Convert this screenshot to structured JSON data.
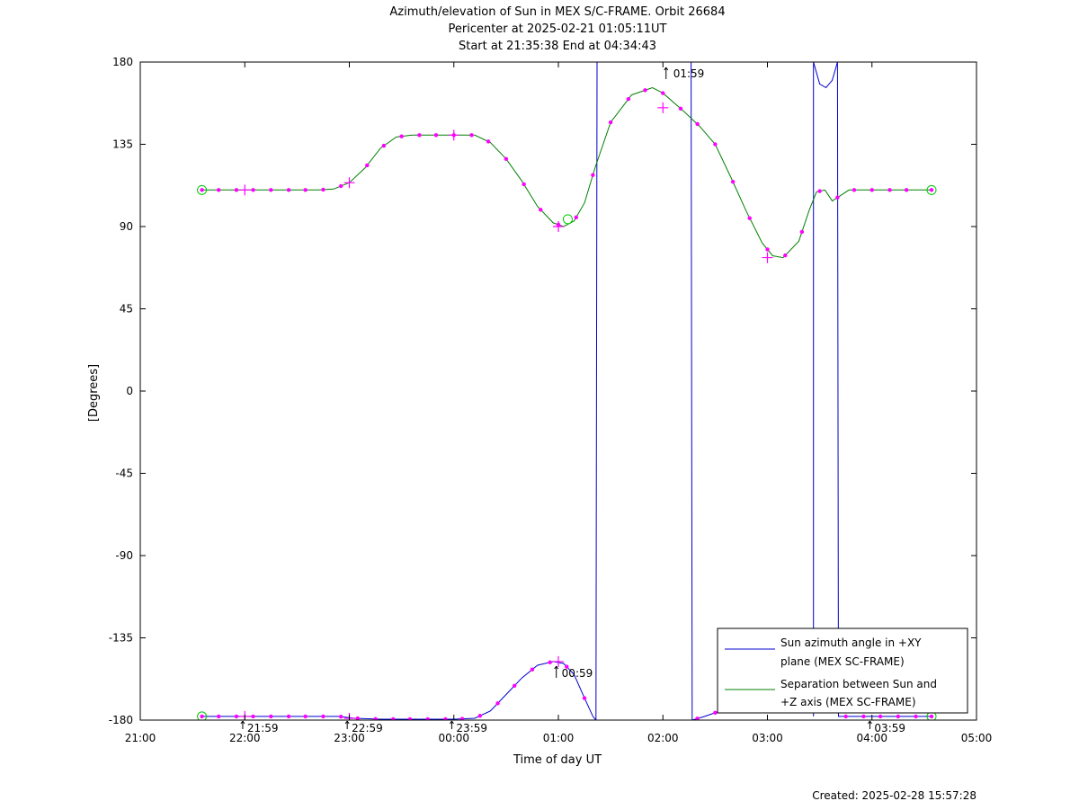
{
  "footer": {
    "created": "Created: 2025-02-28 15:57:28"
  },
  "chart_data": {
    "type": "line",
    "title_lines": [
      "Azimuth/elevation of Sun in MEX S/C-FRAME.  Orbit 26684",
      "Pericenter at 2025-02-21 01:05:11UT",
      "Start at 21:35:38 End at 04:34:43"
    ],
    "xlabel": "Time of day UT",
    "ylabel": "[Degrees]",
    "x_unit": "hours UT (21.0 = 21:00, 29.0 = 05:00 next day)",
    "xlim": [
      21.0,
      29.0
    ],
    "ylim": [
      -180,
      180
    ],
    "x_ticks": [
      {
        "v": 21,
        "label": "21:00"
      },
      {
        "v": 22,
        "label": "22:00"
      },
      {
        "v": 23,
        "label": "23:00"
      },
      {
        "v": 24,
        "label": "00:00"
      },
      {
        "v": 25,
        "label": "01:00"
      },
      {
        "v": 26,
        "label": "02:00"
      },
      {
        "v": 27,
        "label": "03:00"
      },
      {
        "v": 28,
        "label": "04:00"
      },
      {
        "v": 29,
        "label": "05:00"
      }
    ],
    "y_ticks": [
      {
        "v": 180,
        "label": "180"
      },
      {
        "v": 135,
        "label": "135"
      },
      {
        "v": 90,
        "label": "90"
      },
      {
        "v": 45,
        "label": "45"
      },
      {
        "v": 0,
        "label": "0"
      },
      {
        "v": -45,
        "label": "-45"
      },
      {
        "v": -90,
        "label": "-90"
      },
      {
        "v": -135,
        "label": "-135"
      },
      {
        "v": -180,
        "label": "-180"
      }
    ],
    "legend": {
      "position": "bottom-right",
      "entries": [
        {
          "lines": [
            "Sun azimuth angle in +XY",
            "plane (MEX SC-FRAME)"
          ],
          "color": "#0000cc"
        },
        {
          "lines": [
            "Separation between Sun and",
            "+Z axis (MEX SC-FRAME)"
          ],
          "color": "#008000"
        }
      ]
    },
    "series": [
      {
        "color": "#0000cc",
        "points": [
          [
            21.59,
            -178
          ],
          [
            22.0,
            -178
          ],
          [
            22.5,
            -178
          ],
          [
            22.9,
            -178
          ],
          [
            23.05,
            -179
          ],
          [
            23.3,
            -179.5
          ],
          [
            23.7,
            -179.5
          ],
          [
            24.0,
            -179.5
          ],
          [
            24.2,
            -179
          ],
          [
            24.35,
            -175
          ],
          [
            24.5,
            -166
          ],
          [
            24.65,
            -157
          ],
          [
            24.8,
            -150
          ],
          [
            24.95,
            -148
          ],
          [
            25.05,
            -149
          ],
          [
            25.15,
            -155
          ],
          [
            25.25,
            -168
          ],
          [
            25.33,
            -178
          ],
          [
            25.36,
            -180
          ],
          [
            null,
            null
          ],
          [
            25.36,
            -180
          ],
          [
            25.37,
            180
          ],
          [
            null,
            null
          ],
          [
            25.37,
            180
          ],
          [
            25.5,
            180
          ],
          [
            25.8,
            180
          ],
          [
            26.0,
            180
          ],
          [
            26.2,
            180
          ],
          [
            26.27,
            180
          ],
          [
            null,
            null
          ],
          [
            26.27,
            180
          ],
          [
            26.28,
            -180
          ],
          [
            null,
            null
          ],
          [
            26.28,
            -180
          ],
          [
            26.4,
            -178
          ],
          [
            26.55,
            -175
          ],
          [
            26.7,
            -174
          ],
          [
            null,
            null
          ],
          [
            27.44,
            -178
          ],
          [
            27.44,
            180
          ],
          [
            27.5,
            168
          ],
          [
            27.56,
            166
          ],
          [
            27.62,
            170
          ],
          [
            27.67,
            180
          ],
          [
            27.68,
            -178
          ],
          [
            27.8,
            -178
          ],
          [
            28.0,
            -178
          ],
          [
            28.3,
            -178
          ],
          [
            28.57,
            -178
          ]
        ]
      },
      {
        "color": "#008000",
        "points": [
          [
            21.59,
            110
          ],
          [
            21.9,
            110
          ],
          [
            22.3,
            110
          ],
          [
            22.7,
            110
          ],
          [
            22.85,
            110.5
          ],
          [
            23.0,
            114
          ],
          [
            23.15,
            122
          ],
          [
            23.3,
            133
          ],
          [
            23.45,
            139
          ],
          [
            23.6,
            140
          ],
          [
            24.0,
            140
          ],
          [
            24.2,
            140
          ],
          [
            24.35,
            136
          ],
          [
            24.5,
            127
          ],
          [
            24.65,
            115
          ],
          [
            24.8,
            101
          ],
          [
            24.95,
            92
          ],
          [
            25.05,
            90
          ],
          [
            25.15,
            93
          ],
          [
            25.25,
            103
          ],
          [
            25.35,
            122
          ],
          [
            25.5,
            147
          ],
          [
            25.7,
            162
          ],
          [
            25.9,
            166
          ],
          [
            26.0,
            163
          ],
          [
            26.2,
            153
          ],
          [
            26.35,
            145
          ],
          [
            26.5,
            135
          ],
          [
            26.65,
            117
          ],
          [
            26.8,
            98
          ],
          [
            26.95,
            81
          ],
          [
            27.05,
            74
          ],
          [
            27.15,
            73
          ],
          [
            27.3,
            82
          ],
          [
            27.4,
            99
          ],
          [
            27.47,
            109
          ],
          [
            27.55,
            110
          ],
          [
            27.62,
            104
          ],
          [
            27.7,
            107
          ],
          [
            27.78,
            110
          ],
          [
            28.0,
            110
          ],
          [
            28.3,
            110
          ],
          [
            28.57,
            110
          ]
        ]
      }
    ],
    "markers": {
      "dots_azimuth": [
        21.59,
        21.75,
        21.92,
        22.08,
        22.25,
        22.42,
        22.58,
        22.75,
        22.92,
        23.08,
        23.25,
        23.42,
        23.58,
        23.75,
        23.92,
        24.08,
        24.25,
        24.42,
        24.58,
        24.75,
        24.92,
        25.08,
        25.25,
        26.33,
        26.5,
        27.75,
        27.92,
        28.08,
        28.25,
        28.42,
        28.57
      ],
      "dots_separation": [
        21.59,
        21.75,
        21.92,
        22.08,
        22.25,
        22.42,
        22.58,
        22.75,
        22.92,
        23.17,
        23.33,
        23.5,
        23.67,
        23.83,
        24.0,
        24.17,
        24.33,
        24.5,
        24.67,
        24.83,
        25.0,
        25.17,
        25.33,
        25.5,
        25.67,
        25.83,
        26.0,
        26.17,
        26.33,
        26.5,
        26.67,
        26.83,
        27.0,
        27.17,
        27.33,
        27.5,
        27.67,
        27.83,
        28.0,
        28.17,
        28.33,
        28.57
      ],
      "crosses": [
        {
          "x": 22.0,
          "y": 110
        },
        {
          "x": 23.0,
          "y": 114
        },
        {
          "x": 24.0,
          "y": 140
        },
        {
          "x": 25.0,
          "y": 90
        },
        {
          "x": 26.0,
          "y": 155
        },
        {
          "x": 27.0,
          "y": 73
        },
        {
          "x": 22.0,
          "y": -178
        },
        {
          "x": 23.0,
          "y": -179
        },
        {
          "x": 25.0,
          "y": -148
        }
      ],
      "circles": [
        {
          "x": 21.59,
          "y": 110
        },
        {
          "x": 21.59,
          "y": -178
        },
        {
          "x": 25.09,
          "y": 94
        },
        {
          "x": 28.57,
          "y": 110
        },
        {
          "x": 28.57,
          "y": -178
        }
      ]
    },
    "annotations": [
      {
        "x": 21.98,
        "y": -180,
        "label": "21:59"
      },
      {
        "x": 22.98,
        "y": -180,
        "label": "22:59"
      },
      {
        "x": 23.98,
        "y": -180,
        "label": "23:59"
      },
      {
        "x": 24.98,
        "y": -150,
        "label": "00:59"
      },
      {
        "x": 26.03,
        "y": 180,
        "label": "01:59"
      },
      {
        "x": 27.98,
        "y": -180,
        "label": "03:59"
      }
    ]
  }
}
